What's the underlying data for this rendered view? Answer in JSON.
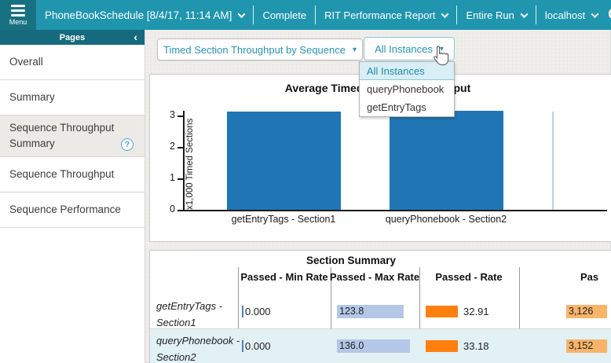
{
  "topbar": {
    "menu_label": "Menu",
    "schedule": "PhoneBookSchedule [8/4/17, 11:14 AM]",
    "status": "Complete",
    "report": "RIT Performance Report",
    "run": "Entire Run",
    "host": "localhost"
  },
  "sidebar": {
    "header": "Pages",
    "items": [
      {
        "label": "Overall",
        "selected": false,
        "has_help": false
      },
      {
        "label": "Summary",
        "selected": false,
        "has_help": false
      },
      {
        "label": "Sequence Throughput Summary",
        "selected": true,
        "has_help": true
      },
      {
        "label": "Sequence Throughput",
        "selected": false,
        "has_help": false
      },
      {
        "label": "Sequence Performance",
        "selected": false,
        "has_help": false
      }
    ]
  },
  "toolbar": {
    "view_select": "Timed Section Throughput by Sequence",
    "instance_select": "All Instances",
    "instance_options": [
      "All Instances",
      "queryPhonebook",
      "getEntryTags"
    ]
  },
  "icons": {
    "collapse": "‹",
    "dropdown_arrow": "▾",
    "help": "?"
  },
  "chart_data": {
    "type": "bar",
    "title": "Average Timed Section Throughput",
    "ylabel": "x1,000 Timed Sections",
    "xlabel": "",
    "categories": [
      "getEntryTags - Section1",
      "queryPhonebook - Section2"
    ],
    "values": [
      3.126,
      3.152
    ],
    "yticks": [
      0,
      1,
      2,
      3
    ],
    "ylim": [
      0,
      3.3
    ],
    "grid": false,
    "legend": "none",
    "bar_color": "#2076b4"
  },
  "table": {
    "title": "Section Summary",
    "columns": [
      "",
      "Passed - Min Rate",
      "Passed - Max Rate",
      "Passed - Rate",
      "Pas"
    ],
    "rows": [
      {
        "label": "getEntryTags - Section1",
        "min_rate": "0.000",
        "max_rate": "123.8",
        "rate": "32.91",
        "passed": "3,126"
      },
      {
        "label": "queryPhonebook - Section2",
        "min_rate": "0.000",
        "max_rate": "136.0",
        "rate": "33.18",
        "passed": "3,152"
      }
    ]
  },
  "colors": {
    "topbar": "#2095ae",
    "topbar_dark": "#187181",
    "pages_header": "#156a7d",
    "accent_teal": "#2795b3",
    "bar_blue": "#2076b4",
    "cell_blue": "#b4c7e7",
    "cell_orange": "#ff7f0e",
    "cell_light_orange": "#f9b46a",
    "row_alt_bg": "#e2f1f4",
    "menu_selected_bg": "#d9eef5"
  }
}
